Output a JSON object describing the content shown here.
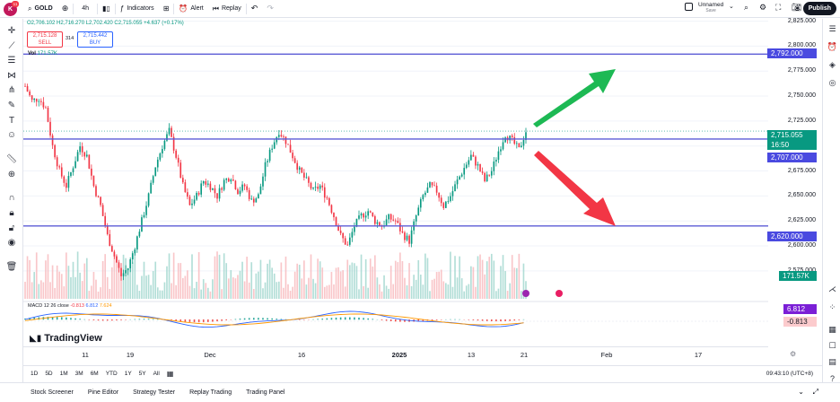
{
  "topbar": {
    "logo_letter": "K",
    "logo_badge": "11",
    "symbol": "GOLD",
    "interval": "4h",
    "indicators_label": "Indicators",
    "alert_label": "Alert",
    "replay_label": "Replay",
    "layout_name": "Unnamed",
    "layout_status": "Save",
    "publish_label": "Publish"
  },
  "legend": {
    "ohlc": "O2,706.102 H2,716.270 L2,702.420 C2,715.055 +4.637 (+0.17%)",
    "sell_price": "2,715.128",
    "sell_label": "SELL",
    "buy_price": "2,715.442",
    "buy_label": "BUY",
    "spread": "314",
    "vol_label": "Vol",
    "vol_value": "171.57K"
  },
  "macd_legend": {
    "name": "MACD 12 26 close",
    "hist": "-0.813",
    "macd": "6.812",
    "signal": "7.624"
  },
  "price_axis": {
    "ticks": [
      "2,825.000",
      "2,800.000",
      "2,775.000",
      "2,750.000",
      "2,725.000",
      "2,700.000",
      "2,675.000",
      "2,650.000",
      "2,625.000",
      "2,600.000",
      "2,575.000"
    ],
    "tags": {
      "line_top": "2,792.000",
      "last_price": "2,715.055",
      "countdown": "16:50",
      "line_mid": "2,707.000",
      "line_low": "2,620.000",
      "volume": "171.57K",
      "macd": "6.812",
      "hist": "-0.813"
    }
  },
  "time_axis": [
    "11",
    "19",
    "Dec",
    "16",
    "2025",
    "13",
    "21",
    "Feb",
    "17"
  ],
  "range_bar": {
    "ranges": [
      "1D",
      "5D",
      "1M",
      "3M",
      "6M",
      "YTD",
      "1Y",
      "5Y",
      "All"
    ],
    "clock": "09:43:10 (UTC+8)"
  },
  "bottom_panel": {
    "tabs": [
      "Stock Screener",
      "Pine Editor",
      "Strategy Tester",
      "Replay Trading",
      "Trading Panel"
    ]
  },
  "watermark": "TradingView",
  "colors": {
    "up": "#089981",
    "down": "#f23645",
    "hline": "#5b5bd6",
    "arrow_up": "#1db954",
    "arrow_down": "#f23645",
    "tag_blue": "#4a4ae0",
    "tag_green": "#089981"
  },
  "chart_data": {
    "type": "candlestick",
    "symbol": "GOLD",
    "interval": "4h",
    "y_range": [
      2565,
      2830
    ],
    "horizontal_lines": [
      2792,
      2707,
      2620
    ],
    "close_path": [
      [
        0,
        2760
      ],
      [
        3,
        2745
      ],
      [
        6,
        2748
      ],
      [
        9,
        2738
      ],
      [
        12,
        2700
      ],
      [
        15,
        2675
      ],
      [
        18,
        2660
      ],
      [
        21,
        2680
      ],
      [
        24,
        2700
      ],
      [
        27,
        2690
      ],
      [
        30,
        2660
      ],
      [
        33,
        2640
      ],
      [
        36,
        2610
      ],
      [
        39,
        2590
      ],
      [
        42,
        2570
      ],
      [
        45,
        2578
      ],
      [
        48,
        2600
      ],
      [
        51,
        2625
      ],
      [
        54,
        2650
      ],
      [
        57,
        2680
      ],
      [
        60,
        2700
      ],
      [
        63,
        2715
      ],
      [
        66,
        2690
      ],
      [
        69,
        2660
      ],
      [
        72,
        2640
      ],
      [
        75,
        2650
      ],
      [
        78,
        2665
      ],
      [
        81,
        2660
      ],
      [
        84,
        2650
      ],
      [
        87,
        2665
      ],
      [
        90,
        2670
      ],
      [
        93,
        2655
      ],
      [
        96,
        2660
      ],
      [
        99,
        2645
      ],
      [
        102,
        2650
      ],
      [
        105,
        2680
      ],
      [
        108,
        2700
      ],
      [
        111,
        2715
      ],
      [
        114,
        2705
      ],
      [
        117,
        2690
      ],
      [
        120,
        2675
      ],
      [
        123,
        2665
      ],
      [
        126,
        2655
      ],
      [
        129,
        2660
      ],
      [
        132,
        2648
      ],
      [
        135,
        2630
      ],
      [
        138,
        2610
      ],
      [
        141,
        2600
      ],
      [
        144,
        2620
      ],
      [
        147,
        2630
      ],
      [
        150,
        2635
      ],
      [
        153,
        2625
      ],
      [
        156,
        2620
      ],
      [
        159,
        2628
      ],
      [
        162,
        2625
      ],
      [
        165,
        2612
      ],
      [
        168,
        2605
      ],
      [
        171,
        2630
      ],
      [
        174,
        2650
      ],
      [
        177,
        2660
      ],
      [
        180,
        2655
      ],
      [
        183,
        2640
      ],
      [
        186,
        2650
      ],
      [
        189,
        2665
      ],
      [
        192,
        2678
      ],
      [
        195,
        2690
      ],
      [
        198,
        2680
      ],
      [
        201,
        2665
      ],
      [
        204,
        2675
      ],
      [
        207,
        2695
      ],
      [
        210,
        2712
      ],
      [
        213,
        2705
      ],
      [
        216,
        2696
      ],
      [
        219,
        2715
      ]
    ],
    "volume": "171.57K",
    "macd": {
      "macd": 6.812,
      "signal": 7.624,
      "histogram": -0.813
    },
    "x_ticks": [
      "11",
      "19",
      "Dec",
      "16",
      "2025",
      "13",
      "21",
      "Feb",
      "17"
    ]
  }
}
